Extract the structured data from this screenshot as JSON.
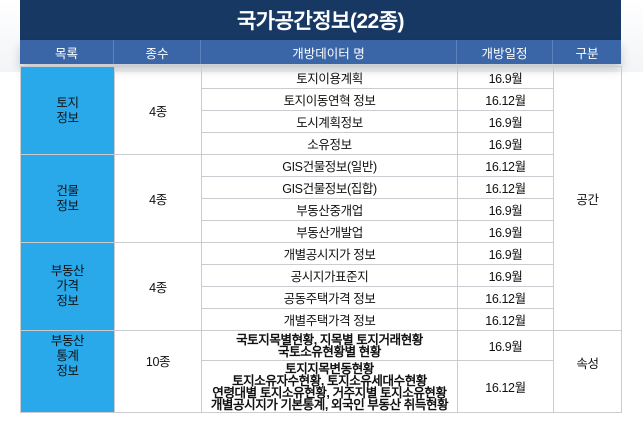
{
  "title": "국가공간정보(22종)",
  "headers": [
    "목록",
    "종수",
    "개방데이터 명",
    "개방일정",
    "구분"
  ],
  "groups": [
    {
      "category": [
        "토지",
        "정보"
      ],
      "count": "4종",
      "rows": [
        {
          "name": "토지이용계획",
          "date": "16.9월"
        },
        {
          "name": "토지이동연혁 정보",
          "date": "16.12월"
        },
        {
          "name": "도시계획정보",
          "date": "16.9월"
        },
        {
          "name": "소유정보",
          "date": "16.9월"
        }
      ]
    },
    {
      "category": [
        "건물",
        "정보"
      ],
      "count": "4종",
      "rows": [
        {
          "name": "GIS건물정보(일반)",
          "date": "16.12월"
        },
        {
          "name": "GIS건물정보(집합)",
          "date": "16.12월"
        },
        {
          "name": "부동산중개업",
          "date": "16.9월"
        },
        {
          "name": "부동산개발업",
          "date": "16.9월"
        }
      ]
    },
    {
      "category": [
        "부동산",
        "가격",
        "정보"
      ],
      "count": "4종",
      "rows": [
        {
          "name": "개별공시지가 정보",
          "date": "16.9월"
        },
        {
          "name": "공시지가표준지",
          "date": "16.9월"
        },
        {
          "name": "공동주택가격 정보",
          "date": "16.12월"
        },
        {
          "name": "개별주택가격 정보",
          "date": "16.12월"
        }
      ]
    },
    {
      "category": [
        "부동산",
        "통계",
        "정보"
      ],
      "count": "10종",
      "rows": [
        {
          "name_lines": [
            "국토지목별현황, 지목별 토지거래현황",
            "국토소유현황별 현황"
          ],
          "date": "16.9월"
        },
        {
          "name_lines": [
            "토지지목변동현황",
            "토지소유자수현황, 토지소유세대수현황",
            "연령대별 토지소유현황, 거주지별 토지소유현황",
            "개별공시지가 기본통계, 외국인 부동산 취득현황"
          ],
          "date": "16.12월"
        }
      ]
    }
  ],
  "types": [
    "공간",
    "속성"
  ],
  "colors": {
    "title_bg": "#183864",
    "header_bg": "#3a66a8",
    "category_bg": "#29a8ea",
    "date_blue": "#2c8fe0"
  }
}
